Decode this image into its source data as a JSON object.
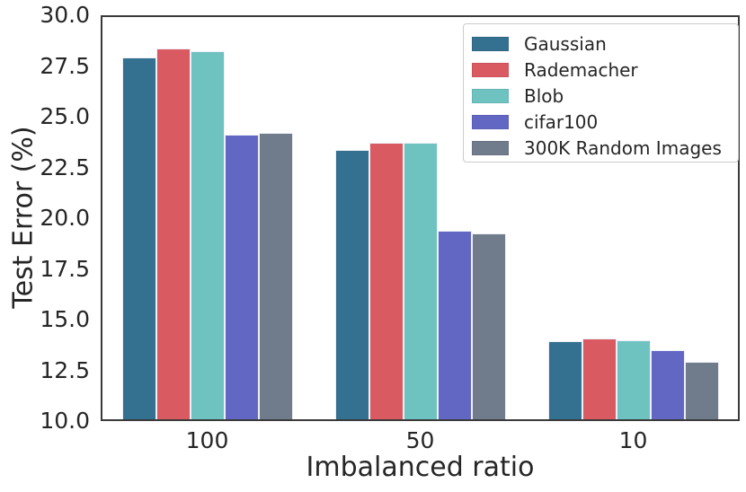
{
  "chart_data": {
    "type": "bar",
    "title": "",
    "xlabel": "Imbalanced ratio",
    "ylabel": "Test Error (%)",
    "categories": [
      "100",
      "50",
      "10"
    ],
    "ylim": [
      10.0,
      30.0
    ],
    "ytick_labels": [
      "30.0",
      "27.5",
      "25.0",
      "22.5",
      "20.0",
      "17.5",
      "15.0",
      "12.5",
      "10.0"
    ],
    "grid": false,
    "legend_position": "upper right",
    "series": [
      {
        "name": "Gaussian",
        "color": "#34708F",
        "values": [
          27.9,
          23.35,
          13.95
        ]
      },
      {
        "name": "Rademacher",
        "color": "#DA5A62",
        "values": [
          28.35,
          23.7,
          14.05
        ]
      },
      {
        "name": "Blob",
        "color": "#6EC3C1",
        "values": [
          28.25,
          23.7,
          14.0
        ]
      },
      {
        "name": "cifar100",
        "color": "#6267C4",
        "values": [
          24.1,
          19.4,
          13.5
        ]
      },
      {
        "name": "300K Random Images",
        "color": "#707B8C",
        "values": [
          24.2,
          19.25,
          12.9
        ]
      }
    ]
  },
  "styles": {
    "background": "#ffffff",
    "spine_color": "#3a3a3a",
    "tick_label_color": "#262626",
    "bar_edge_color": "#EEF0F8",
    "legend_border_color": "#cccccc"
  }
}
